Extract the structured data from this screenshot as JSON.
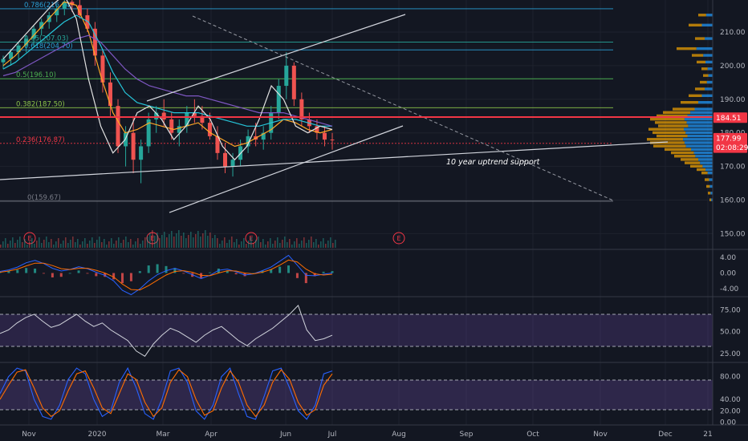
{
  "chart_data": [
    {
      "type": "candlestick",
      "panel": "price",
      "x_axis": {
        "tick_labels": [
          "Nov",
          "2020",
          "Mar",
          "Apr",
          "Jun",
          "Jul",
          "Aug",
          "Sep",
          "Oct",
          "Nov",
          "Dec",
          "21"
        ]
      },
      "y_axis": {
        "tick_labels": [
          "210.00",
          "200.00",
          "190.00",
          "180.00",
          "170.00",
          "160.00",
          "150.00"
        ],
        "ylim": [
          146,
          220
        ]
      },
      "fibonacci_levels": [
        {
          "label": "0.786(216.94)",
          "value": 216.94,
          "color": "#2a9fd6"
        },
        {
          "label": "0.65(207.03)",
          "value": 207.03,
          "color": "#26a69a"
        },
        {
          "label": "0.618(204.70)",
          "value": 204.7,
          "color": "#2a9fd6"
        },
        {
          "label": "0.5(196.10)",
          "value": 196.1,
          "color": "#4caf50"
        },
        {
          "label": "0.382(187.50)",
          "value": 187.5,
          "color": "#8bc34a"
        },
        {
          "label": "0.236(176.87)",
          "value": 176.87,
          "color": "#f23645"
        },
        {
          "label": "0(159.67)",
          "value": 159.67,
          "color": "#787b86"
        }
      ],
      "horizontal_line": {
        "value": 184.51,
        "label": "184.51",
        "color": "#f23645"
      },
      "price_tags": [
        {
          "label": "184.51",
          "value": 184.51,
          "color": "#f23645"
        },
        {
          "label": "177.99",
          "value": 178.4,
          "color": "#f23645"
        },
        {
          "label": "02:08:29",
          "value": 175.6,
          "color": "#f23645"
        }
      ],
      "annotations": [
        "10 year uptrend support"
      ],
      "earnings_markers": [
        "E",
        "E",
        "E",
        "E"
      ],
      "candles": [
        [
          201,
          203,
          199,
          202
        ],
        [
          202,
          205,
          200,
          204
        ],
        [
          204,
          207,
          202,
          206
        ],
        [
          206,
          209,
          204,
          208
        ],
        [
          208,
          212,
          206,
          211
        ],
        [
          211,
          214,
          209,
          213
        ],
        [
          213,
          216,
          211,
          215
        ],
        [
          215,
          218,
          213,
          217
        ],
        [
          217,
          221,
          215,
          219
        ],
        [
          219,
          221,
          216,
          218
        ],
        [
          218,
          220,
          214,
          215
        ],
        [
          215,
          217,
          210,
          211
        ],
        [
          211,
          213,
          200,
          203
        ],
        [
          203,
          205,
          192,
          195
        ],
        [
          195,
          198,
          185,
          188
        ],
        [
          188,
          190,
          174,
          176
        ],
        [
          176,
          182,
          170,
          180
        ],
        [
          180,
          185,
          168,
          172
        ],
        [
          172,
          178,
          165,
          176
        ],
        [
          176,
          186,
          174,
          184
        ],
        [
          184,
          188,
          180,
          186
        ],
        [
          186,
          190,
          182,
          184
        ],
        [
          184,
          186,
          178,
          180
        ],
        [
          180,
          184,
          176,
          182
        ],
        [
          182,
          188,
          180,
          186
        ],
        [
          186,
          190,
          183,
          185
        ],
        [
          185,
          188,
          181,
          183
        ],
        [
          183,
          186,
          178,
          179
        ],
        [
          179,
          182,
          172,
          174
        ],
        [
          174,
          177,
          168,
          170
        ],
        [
          170,
          174,
          167,
          172
        ],
        [
          172,
          178,
          170,
          176
        ],
        [
          176,
          181,
          174,
          179
        ],
        [
          179,
          183,
          176,
          178
        ],
        [
          178,
          182,
          175,
          180
        ],
        [
          180,
          188,
          178,
          186
        ],
        [
          186,
          196,
          184,
          194
        ],
        [
          194,
          204,
          190,
          200
        ],
        [
          200,
          201,
          188,
          190
        ],
        [
          190,
          192,
          182,
          184
        ],
        [
          184,
          186,
          180,
          182
        ],
        [
          182,
          184,
          178,
          180
        ],
        [
          180,
          182,
          176,
          178
        ],
        [
          178,
          180,
          175,
          177.99
        ]
      ],
      "ema_lines": [
        {
          "color": "#ffa726",
          "values": [
            200,
            203,
            207,
            211,
            215,
            219,
            218,
            210,
            197,
            186,
            180,
            181,
            183,
            182,
            181,
            182,
            183,
            180,
            178,
            176,
            177,
            179,
            181,
            184,
            183,
            181,
            180,
            181
          ]
        },
        {
          "color": "#26c6da",
          "values": [
            199,
            201,
            204,
            207,
            210,
            213,
            215,
            213,
            206,
            198,
            192,
            189,
            188,
            187,
            186,
            186,
            186,
            185,
            184,
            183,
            182,
            182,
            183,
            184,
            184,
            183,
            182,
            182
          ]
        },
        {
          "color": "#7e57c2",
          "values": [
            197,
            198,
            200,
            202,
            204,
            206,
            208,
            209,
            207,
            203,
            199,
            196,
            194,
            193,
            192,
            191,
            191,
            190,
            189,
            188,
            187,
            186,
            186,
            186,
            185,
            184,
            183,
            182
          ]
        },
        {
          "color": "#e1e1e1",
          "values": [
            202,
            206,
            210,
            214,
            218,
            221,
            214,
            196,
            182,
            174,
            178,
            186,
            188,
            184,
            178,
            182,
            188,
            184,
            176,
            172,
            176,
            184,
            194,
            190,
            182,
            180,
            182,
            181
          ]
        }
      ],
      "volume_profile_note": "horizontal volume histogram at right edge"
    },
    {
      "type": "line",
      "panel": "macd",
      "y_axis": {
        "tick_labels": [
          "4.00",
          "0.00",
          "-4.00"
        ],
        "ylim": [
          -6,
          6
        ]
      },
      "series": [
        {
          "color": "#2962ff",
          "values": [
            0.4,
            0.8,
            1.5,
            2.6,
            3.2,
            2.4,
            1.2,
            0.5,
            0.9,
            1.6,
            1.1,
            0.2,
            -0.6,
            -2.0,
            -4.4,
            -5.5,
            -4.0,
            -2.0,
            -0.4,
            0.6,
            1.2,
            0.5,
            -0.4,
            -1.4,
            -0.6,
            0.7,
            1.0,
            0.3,
            -0.5,
            -0.2,
            0.6,
            1.5,
            3.0,
            4.5,
            2.0,
            -0.6,
            -0.7,
            -0.3,
            0.0
          ]
        },
        {
          "color": "#ff6d00",
          "values": [
            0.2,
            0.5,
            1.0,
            1.8,
            2.5,
            2.5,
            1.9,
            1.1,
            0.9,
            1.2,
            1.2,
            0.7,
            0.0,
            -1.0,
            -2.8,
            -4.2,
            -4.3,
            -3.2,
            -1.8,
            -0.5,
            0.4,
            0.6,
            0.2,
            -0.6,
            -0.7,
            0.0,
            0.6,
            0.5,
            0.0,
            -0.2,
            0.2,
            0.9,
            2.0,
            3.3,
            2.8,
            1.0,
            -0.2,
            -0.5,
            -0.3
          ]
        }
      ]
    },
    {
      "type": "line",
      "panel": "rsi",
      "y_axis": {
        "tick_labels": [
          "75.00",
          "50.00",
          "25.00"
        ],
        "ylim": [
          15,
          90
        ]
      },
      "band": [
        30,
        70
      ],
      "series": [
        {
          "color": "#d1d4dc",
          "values": [
            48,
            52,
            60,
            66,
            70,
            62,
            55,
            58,
            64,
            70,
            62,
            56,
            60,
            52,
            46,
            40,
            28,
            22,
            36,
            46,
            54,
            50,
            44,
            38,
            46,
            52,
            56,
            48,
            40,
            34,
            42,
            48,
            54,
            62,
            70,
            80,
            52,
            40,
            42,
            46
          ]
        }
      ]
    },
    {
      "type": "line",
      "panel": "stochastic_rsi",
      "y_axis": {
        "tick_labels": [
          "80.00",
          "40.00",
          "20.00",
          "0.00"
        ],
        "ylim": [
          -5,
          105
        ]
      },
      "band": [
        20,
        80
      ],
      "series": [
        {
          "color": "#2962ff",
          "values": [
            50,
            80,
            95,
            90,
            40,
            10,
            5,
            30,
            75,
            95,
            85,
            40,
            10,
            20,
            70,
            95,
            60,
            15,
            5,
            40,
            90,
            95,
            70,
            20,
            5,
            30,
            80,
            95,
            50,
            10,
            5,
            45,
            90,
            95,
            60,
            20,
            5,
            30,
            85,
            90
          ]
        },
        {
          "color": "#ff6d00",
          "values": [
            40,
            65,
            88,
            92,
            60,
            25,
            10,
            20,
            55,
            85,
            90,
            60,
            25,
            15,
            50,
            85,
            75,
            35,
            10,
            25,
            70,
            92,
            80,
            40,
            12,
            20,
            60,
            90,
            70,
            30,
            10,
            30,
            70,
            92,
            75,
            35,
            12,
            22,
            65,
            85
          ]
        }
      ]
    }
  ]
}
